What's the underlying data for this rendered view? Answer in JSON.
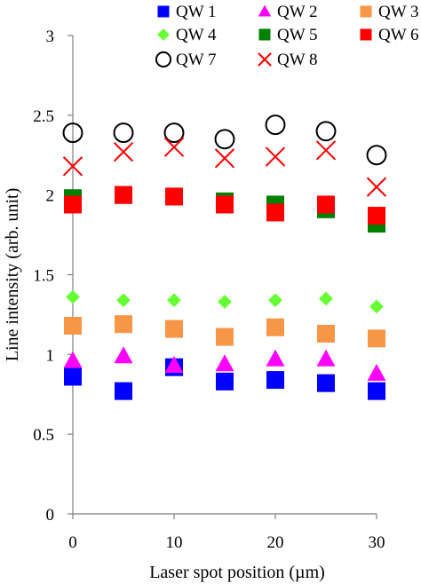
{
  "chart_data": {
    "type": "scatter",
    "title": "",
    "xlabel": "Laser spot position (µm)",
    "ylabel": "Line intensity (arb. unit)",
    "xlim": [
      0,
      30
    ],
    "ylim": [
      0,
      3
    ],
    "xticks": [
      "0",
      "10",
      "20",
      "30"
    ],
    "xtick_values": [
      0,
      10,
      20,
      30
    ],
    "yticks": [
      "0",
      "0.5",
      "1",
      "1.5",
      "2",
      "2.5",
      "3"
    ],
    "ytick_values": [
      0,
      0.5,
      1,
      1.5,
      2,
      2.5,
      3
    ],
    "grid": false,
    "legend_position": "top",
    "x": [
      0,
      5,
      10,
      15,
      20,
      25,
      30
    ],
    "series": [
      {
        "name": "QW 1",
        "marker": "square",
        "color": "#0000ff",
        "values": [
          0.86,
          0.77,
          0.92,
          0.83,
          0.84,
          0.82,
          0.77
        ]
      },
      {
        "name": "QW 2",
        "marker": "triangle",
        "color": "#ff00ff",
        "values": [
          0.96,
          0.99,
          0.93,
          0.94,
          0.97,
          0.97,
          0.88
        ]
      },
      {
        "name": "QW 3",
        "marker": "square",
        "color": "#f79646",
        "values": [
          1.18,
          1.19,
          1.16,
          1.11,
          1.17,
          1.13,
          1.1
        ]
      },
      {
        "name": "QW 4",
        "marker": "diamond",
        "color": "#66ff33",
        "values": [
          1.36,
          1.34,
          1.34,
          1.33,
          1.34,
          1.35,
          1.3
        ]
      },
      {
        "name": "QW 5",
        "marker": "square",
        "color": "#008000",
        "values": [
          1.98,
          2.0,
          1.99,
          1.96,
          1.94,
          1.91,
          1.82
        ]
      },
      {
        "name": "QW 6",
        "marker": "square",
        "color": "#ff0000",
        "values": [
          1.94,
          2.0,
          1.99,
          1.94,
          1.89,
          1.94,
          1.87
        ]
      },
      {
        "name": "QW 7",
        "marker": "circle",
        "color": "#000000",
        "values": [
          2.39,
          2.39,
          2.39,
          2.35,
          2.44,
          2.4,
          2.25
        ]
      },
      {
        "name": "QW 8",
        "marker": "x",
        "color": "#ff0000",
        "values": [
          2.18,
          2.27,
          2.3,
          2.23,
          2.24,
          2.28,
          2.05
        ]
      }
    ]
  }
}
